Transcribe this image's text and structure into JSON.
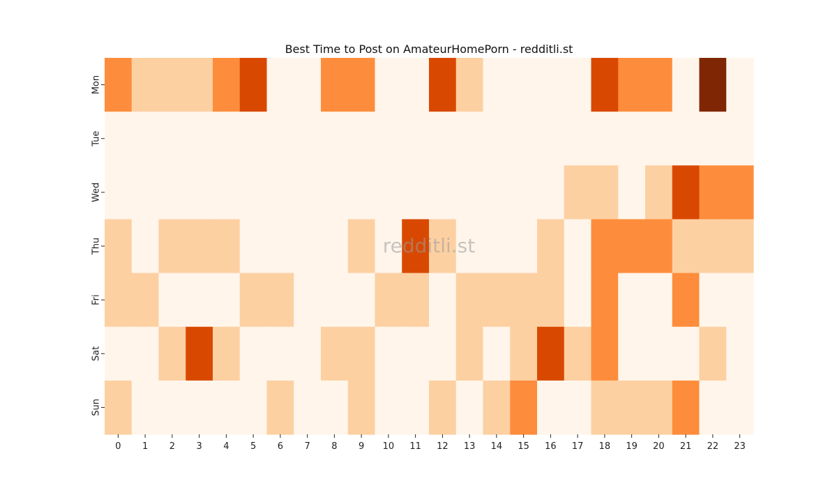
{
  "chart_data": {
    "type": "heatmap",
    "title": "Best Time to Post on AmateurHomePorn - redditli.st",
    "xlabel": "",
    "ylabel": "",
    "x": [
      "0",
      "1",
      "2",
      "3",
      "4",
      "5",
      "6",
      "7",
      "8",
      "9",
      "10",
      "11",
      "12",
      "13",
      "14",
      "15",
      "16",
      "17",
      "18",
      "19",
      "20",
      "21",
      "22",
      "23"
    ],
    "y": [
      "Mon",
      "Tue",
      "Wed",
      "Thu",
      "Fri",
      "Sat",
      "Sun"
    ],
    "values": [
      [
        2,
        1,
        1,
        1,
        2,
        3,
        0,
        0,
        2,
        2,
        0,
        0,
        3,
        1,
        0,
        0,
        0,
        0,
        3,
        2,
        2,
        0,
        4,
        0
      ],
      [
        0,
        0,
        0,
        0,
        0,
        0,
        0,
        0,
        0,
        0,
        0,
        0,
        0,
        0,
        0,
        0,
        0,
        0,
        0,
        0,
        0,
        0,
        0,
        0
      ],
      [
        0,
        0,
        0,
        0,
        0,
        0,
        0,
        0,
        0,
        0,
        0,
        0,
        0,
        0,
        0,
        0,
        0,
        1,
        1,
        0,
        1,
        3,
        2,
        2
      ],
      [
        1,
        0,
        1,
        1,
        1,
        0,
        0,
        0,
        0,
        1,
        0,
        3,
        1,
        0,
        0,
        0,
        1,
        0,
        2,
        2,
        2,
        1,
        1,
        1
      ],
      [
        1,
        1,
        0,
        0,
        0,
        1,
        1,
        0,
        0,
        0,
        1,
        1,
        0,
        1,
        1,
        1,
        1,
        0,
        2,
        0,
        0,
        2,
        0,
        0
      ],
      [
        0,
        0,
        1,
        3,
        1,
        0,
        0,
        0,
        1,
        1,
        0,
        0,
        0,
        1,
        0,
        1,
        3,
        1,
        2,
        0,
        0,
        0,
        1,
        0
      ],
      [
        1,
        0,
        0,
        0,
        0,
        0,
        1,
        0,
        0,
        1,
        0,
        0,
        1,
        0,
        1,
        2,
        0,
        0,
        1,
        1,
        1,
        2,
        0,
        0
      ]
    ],
    "colorscale": [
      "#fff5eb",
      "#fdd0a2",
      "#fd8d3c",
      "#d94801",
      "#7f2704"
    ],
    "colorbar": false
  },
  "watermark": "redditli.st"
}
